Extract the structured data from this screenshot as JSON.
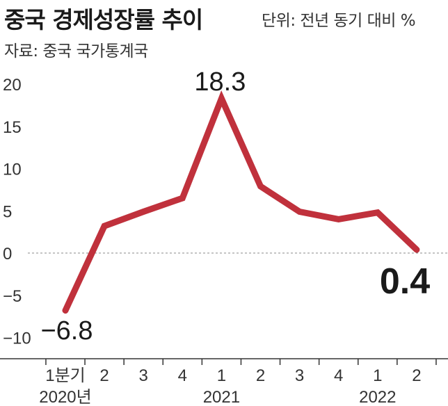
{
  "header": {
    "title": "중국 경제성장률 추이",
    "unit": "단위: 전년 동기 대비 %",
    "source": "자료: 중국 국가통계국"
  },
  "chart_data": {
    "type": "line",
    "title": "중국 경제성장률 추이",
    "x": [
      "1분기",
      "2",
      "3",
      "4",
      "1",
      "2",
      "3",
      "4",
      "1",
      "2"
    ],
    "years": [
      {
        "label": "2020년",
        "index": 0
      },
      {
        "label": "2021",
        "index": 4
      },
      {
        "label": "2022",
        "index": 8
      }
    ],
    "series": [
      {
        "values": [
          -6.8,
          3.2,
          4.9,
          6.5,
          18.3,
          7.9,
          4.9,
          4.0,
          4.8,
          0.4
        ],
        "color": "#c0313c"
      }
    ],
    "yticks": [
      20,
      15,
      10,
      5,
      0,
      -5,
      -10
    ],
    "ylim": [
      -12.5,
      20
    ],
    "annotations": [
      {
        "index": 0,
        "text": "−6.8"
      },
      {
        "index": 4,
        "text": "18.3"
      },
      {
        "index": 9,
        "text": "0.4"
      }
    ],
    "zero_line": "dotted",
    "grid": false
  }
}
